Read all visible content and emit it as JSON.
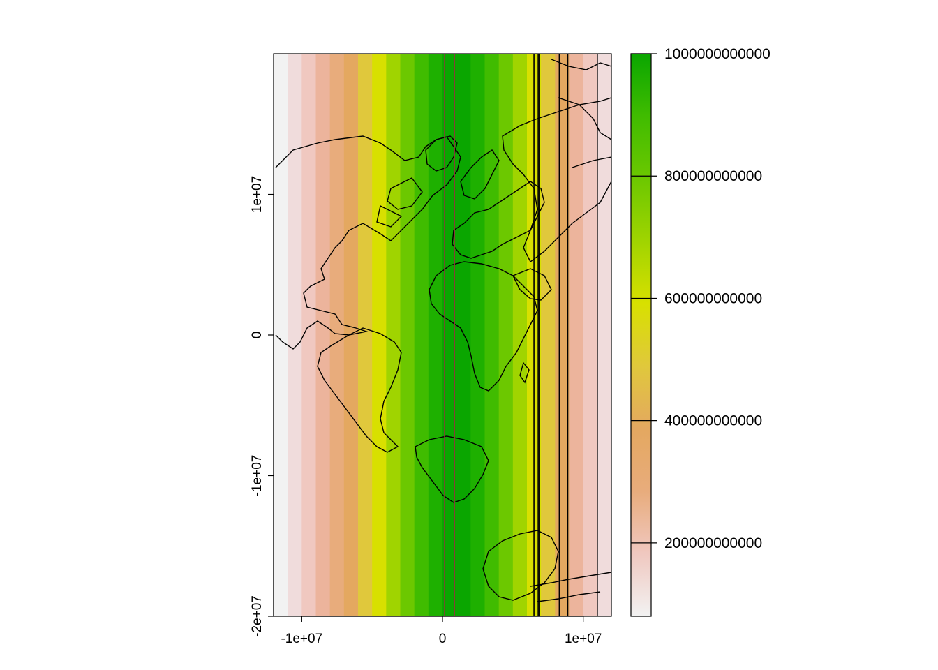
{
  "chart_data": {
    "type": "heatmap",
    "title": "",
    "xlabel": "",
    "ylabel": "",
    "xlim": [
      -12000000,
      12000000
    ],
    "ylim": [
      -20000000,
      20000000
    ],
    "x_ticks": [
      {
        "value": -10000000,
        "label": "-1e+07"
      },
      {
        "value": 0,
        "label": "0"
      },
      {
        "value": 10000000,
        "label": "1e+07"
      }
    ],
    "y_ticks": [
      {
        "value": -20000000,
        "label": "-2e+07"
      },
      {
        "value": -10000000,
        "label": "-1e+07"
      },
      {
        "value": 0,
        "label": "0"
      },
      {
        "value": 10000000,
        "label": "1e+07"
      }
    ],
    "raster_columns": {
      "x_start": -12000000,
      "column_width": 1000000,
      "colors": [
        "#f2f2f2",
        "#f0dcdc",
        "#f0c8c0",
        "#ecb49c",
        "#e8ac7c",
        "#e4a860",
        "#e0c83c",
        "#d8e000",
        "#a0d400",
        "#6cc800",
        "#40bc00",
        "#1eb000",
        "#0aa600",
        "#0aa600",
        "#1eb000",
        "#40bc00",
        "#6cc800",
        "#a0d400",
        "#d8e000",
        "#e0c83c",
        "#e4a860",
        "#ecb49c",
        "#f0c8c0",
        "#f0dcdc"
      ]
    },
    "vertical_lines": [
      {
        "x": 150000,
        "color": "#8b3a3a"
      },
      {
        "x": 850000,
        "color": "#8b3a3a"
      },
      {
        "x": 6500000,
        "color": "#000000"
      },
      {
        "x": 6800000,
        "color": "#000000"
      },
      {
        "x": 6900000,
        "color": "#000000"
      },
      {
        "x": 8300000,
        "color": "#000000"
      },
      {
        "x": 8900000,
        "color": "#000000"
      },
      {
        "x": 11000000,
        "color": "#000000"
      }
    ],
    "legend": {
      "placement": "right",
      "range": [
        80000000000,
        1000000000000
      ],
      "ticks": [
        {
          "value": 200000000000,
          "label": "200000000000"
        },
        {
          "value": 400000000000,
          "label": "400000000000"
        },
        {
          "value": 600000000000,
          "label": "600000000000"
        },
        {
          "value": 800000000000,
          "label": "800000000000"
        },
        {
          "value": 1000000000000,
          "label": "1000000000000"
        }
      ],
      "gradient": [
        "#f2f2f2",
        "#f0c8c0",
        "#e8ac7c",
        "#e4a860",
        "#e0c83c",
        "#d8e000",
        "#a0d400",
        "#6cc800",
        "#40bc00",
        "#0aa600"
      ]
    },
    "land_outline_color": "#000000"
  }
}
